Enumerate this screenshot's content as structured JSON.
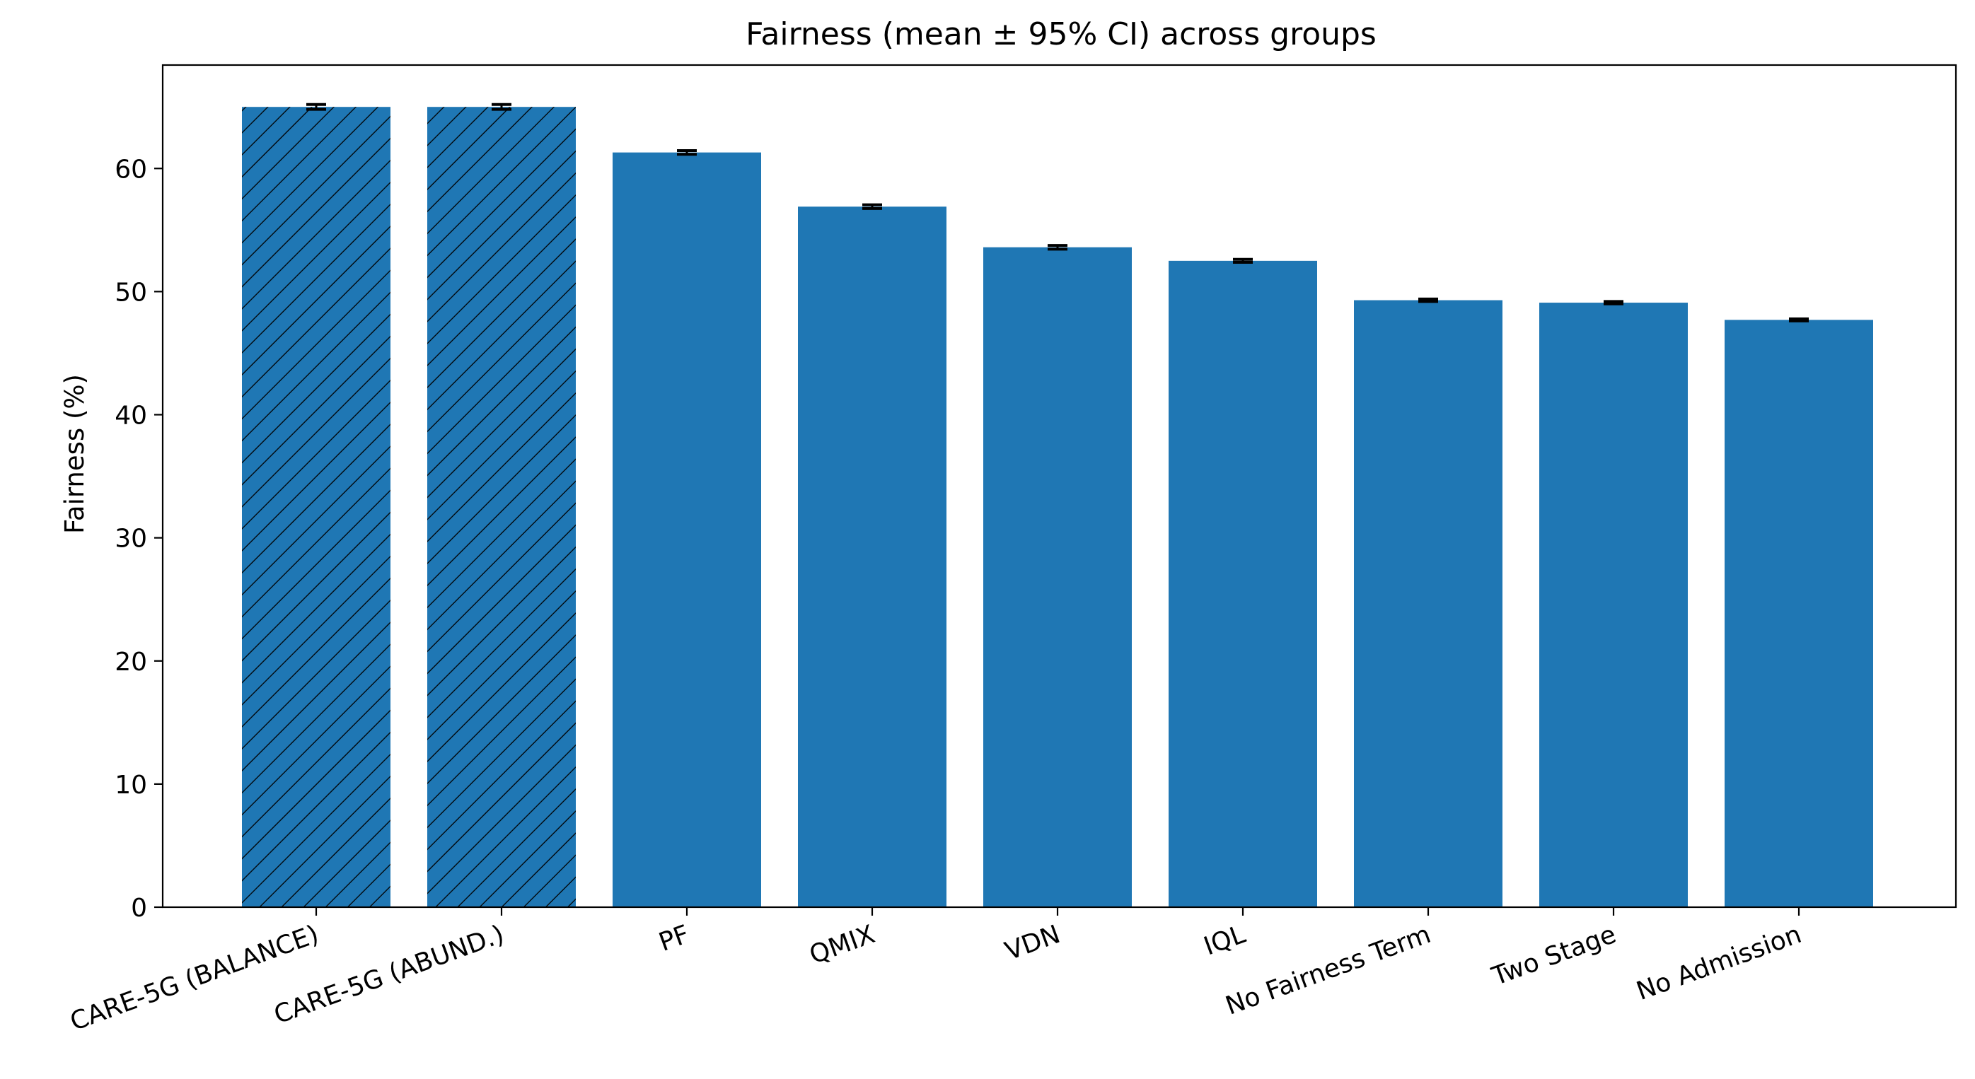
{
  "chart_data": {
    "type": "bar",
    "title": "Fairness (mean ± 95% CI) across groups",
    "xlabel": "",
    "ylabel": "Fairness (%)",
    "ylim": [
      0,
      68.4
    ],
    "yticks": [
      "0",
      "10",
      "20",
      "30",
      "40",
      "50",
      "60"
    ],
    "categories": [
      "CARE-5G (BALANCE)",
      "CARE-5G (ABUND.)",
      "PF",
      "QMIX",
      "VDN",
      "IQL",
      "No Fairness Term",
      "Two Stage",
      "No Admission"
    ],
    "values": [
      65.0,
      65.0,
      61.3,
      56.9,
      53.6,
      52.5,
      49.3,
      49.1,
      47.7
    ],
    "ci": [
      0.2,
      0.2,
      0.15,
      0.15,
      0.15,
      0.12,
      0.1,
      0.1,
      0.08
    ],
    "hatched": [
      true,
      true,
      false,
      false,
      false,
      false,
      false,
      false,
      false
    ],
    "grid": false,
    "colors": {
      "bar": "#1f77b4",
      "hatch": "#000000",
      "errorbar": "#000000",
      "axes": "#000000"
    }
  }
}
